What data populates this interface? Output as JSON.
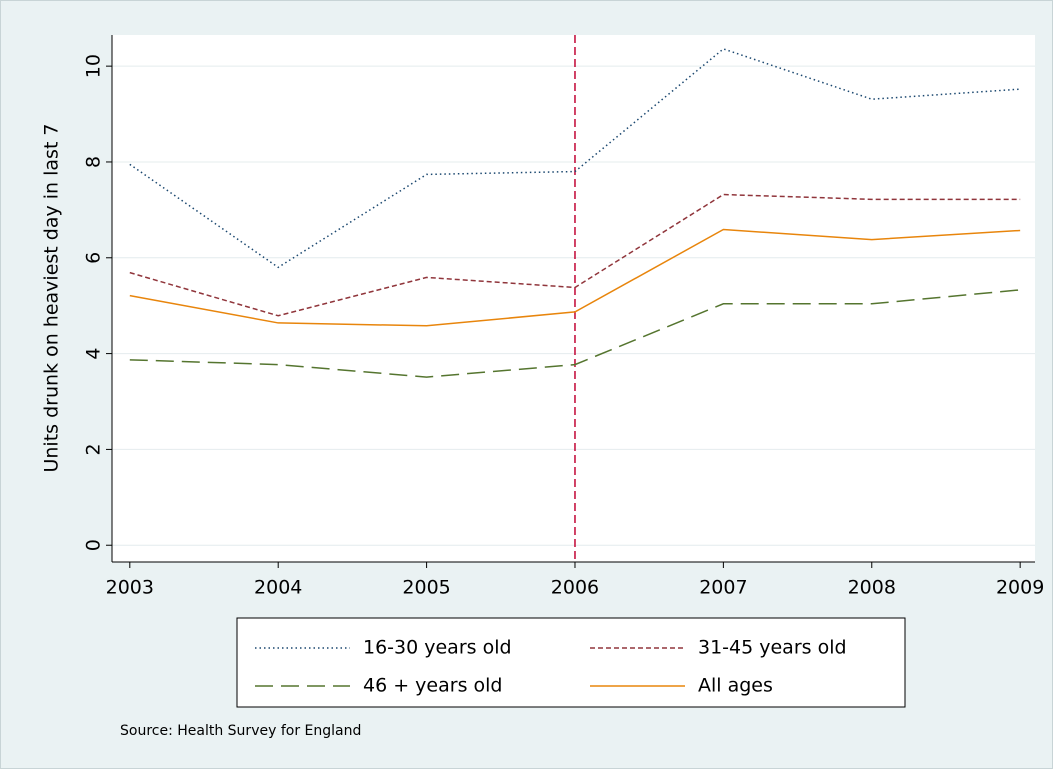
{
  "chart_data": {
    "type": "line",
    "y_label": "Units drunk on heaviest day in last 7",
    "source": "Source: Health Survey for England",
    "x": [
      2003,
      2004,
      2005,
      2006,
      2007,
      2008,
      2009
    ],
    "xlim": [
      2002.88,
      2009.1
    ],
    "xticks": [
      2003,
      2004,
      2005,
      2006,
      2007,
      2008,
      2009
    ],
    "ylim": [
      -0.35,
      10.65
    ],
    "yticks": [
      0,
      2,
      4,
      6,
      8,
      10
    ],
    "grid": true,
    "reference_line": {
      "x": 2006,
      "color": "#c10534"
    },
    "series": [
      {
        "name": "16-30 years old",
        "color": "#1a476f",
        "style": "dotted",
        "values": [
          7.95,
          5.8,
          7.74,
          7.8,
          10.36,
          9.31,
          9.52
        ]
      },
      {
        "name": "31-45 years old",
        "color": "#90353b",
        "style": "dashed",
        "values": [
          5.69,
          4.79,
          5.59,
          5.38,
          7.32,
          7.22,
          7.22
        ]
      },
      {
        "name": "46 + years old",
        "color": "#55752f",
        "style": "longdash",
        "values": [
          3.87,
          3.77,
          3.51,
          3.77,
          5.04,
          5.04,
          5.33
        ]
      },
      {
        "name": "All ages",
        "color": "#e8850c",
        "style": "solid",
        "values": [
          5.21,
          4.64,
          4.58,
          4.87,
          6.59,
          6.38,
          6.57
        ]
      }
    ]
  }
}
